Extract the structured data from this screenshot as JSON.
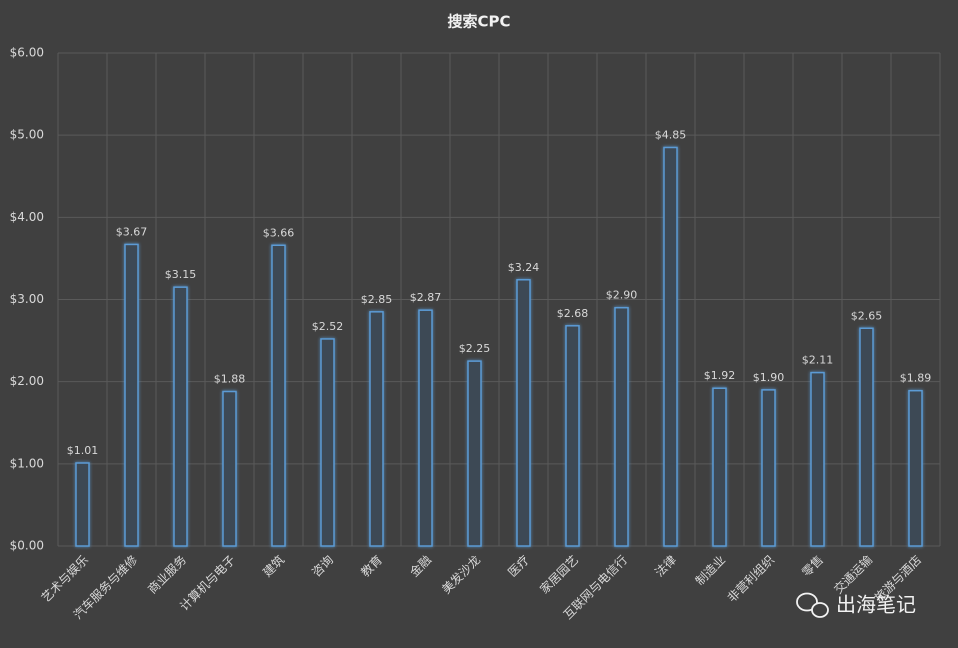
{
  "chart_data": {
    "type": "bar",
    "title": "搜索CPC",
    "categories": [
      "艺术与娱乐",
      "汽车服务与维修",
      "商业服务",
      "计算机与电子",
      "建筑",
      "咨询",
      "教育",
      "金融",
      "美发沙龙",
      "医疗",
      "家居园艺",
      "互联网与电信行",
      "法律",
      "制造业",
      "非营利组织",
      "零售",
      "交通运输",
      "旅游与酒店"
    ],
    "values": [
      1.01,
      3.67,
      3.15,
      1.88,
      3.66,
      2.52,
      2.85,
      2.87,
      2.25,
      3.24,
      2.68,
      2.9,
      4.85,
      1.92,
      1.9,
      2.11,
      2.65,
      1.89
    ],
    "value_labels": [
      "$1.01",
      "$3.67",
      "$3.15",
      "$1.88",
      "$3.66",
      "$2.52",
      "$2.85",
      "$2.87",
      "$2.25",
      "$3.24",
      "$2.68",
      "$2.90",
      "$4.85",
      "$1.92",
      "$1.90",
      "$2.11",
      "$2.65",
      "$1.89"
    ],
    "color": "#5b9bd5",
    "ylim": [
      0,
      6
    ],
    "yticks": [
      {
        "value": 0,
        "label": "$0.00"
      },
      {
        "value": 1,
        "label": "$1.00"
      },
      {
        "value": 2,
        "label": "$2.00"
      },
      {
        "value": 3,
        "label": "$3.00"
      },
      {
        "value": 4,
        "label": "$4.00"
      },
      {
        "value": 5,
        "label": "$5.00"
      },
      {
        "value": 6,
        "label": "$6.00"
      }
    ],
    "grid": true
  },
  "watermark": "出海笔记"
}
